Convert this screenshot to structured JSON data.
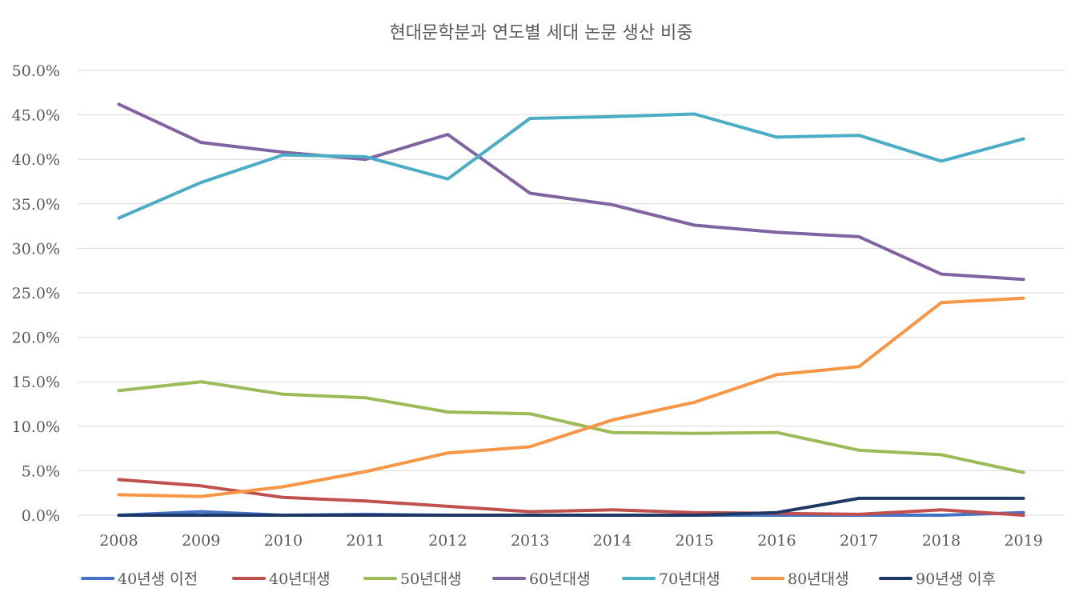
{
  "chart_data": {
    "type": "line",
    "title": "현대문학분과 연도별 세대 논문 생산 비중",
    "xlabel": "",
    "ylabel": "",
    "categories": [
      "2008",
      "2009",
      "2010",
      "2011",
      "2012",
      "2013",
      "2014",
      "2015",
      "2016",
      "2017",
      "2018",
      "2019"
    ],
    "ylim": [
      0,
      50
    ],
    "yticks": [
      "0.0%",
      "5.0%",
      "10.0%",
      "15.0%",
      "20.0%",
      "25.0%",
      "30.0%",
      "35.0%",
      "40.0%",
      "45.0%",
      "50.0%"
    ],
    "grid": true,
    "legend_position": "bottom",
    "series": [
      {
        "name": "40년생 이전",
        "color": "#4472c4",
        "values": [
          0.0,
          0.4,
          0.0,
          0.1,
          0.0,
          0.0,
          0.0,
          0.0,
          0.0,
          0.0,
          0.0,
          0.3
        ]
      },
      {
        "name": "40년대생",
        "color": "#c0504d",
        "values": [
          4.0,
          3.3,
          2.0,
          1.6,
          1.0,
          0.4,
          0.6,
          0.3,
          0.2,
          0.1,
          0.6,
          0.0
        ]
      },
      {
        "name": "50년대생",
        "color": "#9bbb59",
        "values": [
          14.0,
          15.0,
          13.6,
          13.2,
          11.6,
          11.4,
          9.3,
          9.2,
          9.3,
          7.3,
          6.8,
          4.8
        ]
      },
      {
        "name": "60년대생",
        "color": "#8064a2",
        "values": [
          46.2,
          41.9,
          40.8,
          40.0,
          42.8,
          36.2,
          34.9,
          32.6,
          31.8,
          31.3,
          27.1,
          26.5
        ]
      },
      {
        "name": "70년대생",
        "color": "#4bacc6",
        "values": [
          33.4,
          37.4,
          40.5,
          40.3,
          37.8,
          44.6,
          44.8,
          45.1,
          42.5,
          42.7,
          39.8,
          42.3
        ]
      },
      {
        "name": "80년대생",
        "color": "#f79646",
        "values": [
          2.3,
          2.1,
          3.2,
          4.9,
          7.0,
          7.7,
          10.7,
          12.7,
          15.8,
          16.7,
          23.9,
          24.4
        ]
      },
      {
        "name": "90년생 이후",
        "color": "#1f3864",
        "values": [
          0.0,
          0.0,
          0.0,
          0.0,
          0.0,
          0.0,
          0.0,
          0.0,
          0.3,
          1.9,
          1.9,
          1.9
        ]
      }
    ]
  }
}
